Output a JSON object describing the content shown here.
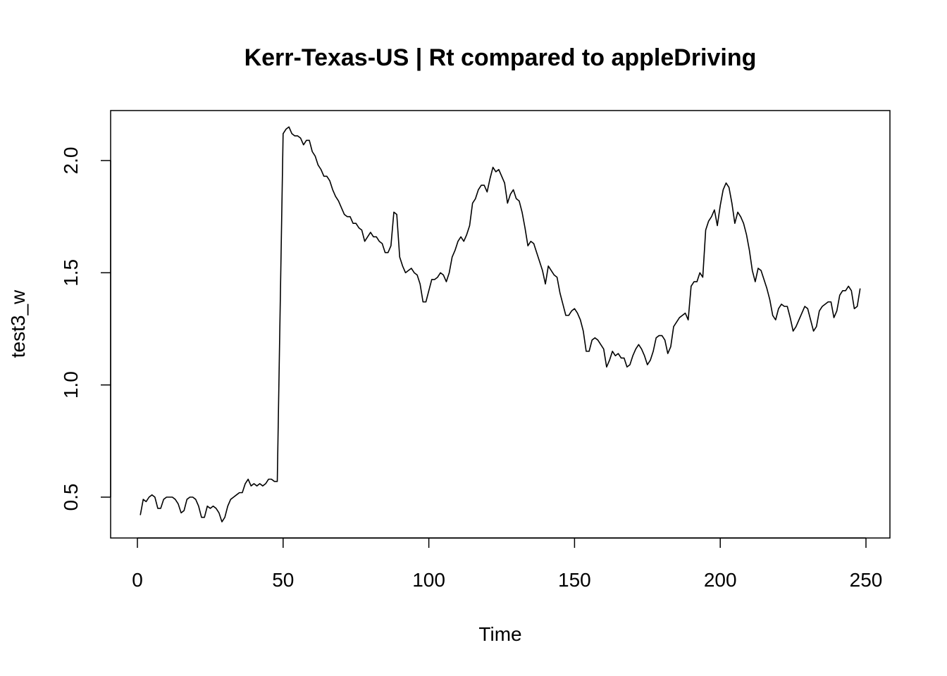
{
  "chart_data": {
    "type": "line",
    "title": "Kerr-Texas-US | Rt compared to appleDriving",
    "xlabel": "Time",
    "ylabel": "test3_w",
    "xlim": [
      1,
      248
    ],
    "ylim": [
      0.39,
      2.15
    ],
    "xticks": [
      0,
      50,
      100,
      150,
      200,
      250
    ],
    "xtick_labels": [
      "0",
      "50",
      "100",
      "150",
      "200",
      "250"
    ],
    "yticks": [
      0.5,
      1.0,
      1.5,
      2.0
    ],
    "ytick_labels": [
      "0.5",
      "1.0",
      "1.5",
      "2.0"
    ],
    "grid": false,
    "series": [
      {
        "points": [
          [
            1,
            0.42
          ],
          [
            2,
            0.49
          ],
          [
            3,
            0.48
          ],
          [
            4,
            0.5
          ],
          [
            5,
            0.51
          ],
          [
            6,
            0.5
          ],
          [
            7,
            0.45
          ],
          [
            8,
            0.45
          ],
          [
            9,
            0.49
          ],
          [
            10,
            0.5
          ],
          [
            11,
            0.5
          ],
          [
            12,
            0.5
          ],
          [
            13,
            0.49
          ],
          [
            14,
            0.47
          ],
          [
            15,
            0.43
          ],
          [
            16,
            0.44
          ],
          [
            17,
            0.49
          ],
          [
            18,
            0.5
          ],
          [
            19,
            0.5
          ],
          [
            20,
            0.49
          ],
          [
            21,
            0.46
          ],
          [
            22,
            0.41
          ],
          [
            23,
            0.41
          ],
          [
            24,
            0.46
          ],
          [
            25,
            0.45
          ],
          [
            26,
            0.46
          ],
          [
            27,
            0.45
          ],
          [
            28,
            0.43
          ],
          [
            29,
            0.39
          ],
          [
            30,
            0.41
          ],
          [
            31,
            0.46
          ],
          [
            32,
            0.49
          ],
          [
            33,
            0.5
          ],
          [
            34,
            0.51
          ],
          [
            35,
            0.52
          ],
          [
            36,
            0.52
          ],
          [
            37,
            0.56
          ],
          [
            38,
            0.58
          ],
          [
            39,
            0.55
          ],
          [
            40,
            0.56
          ],
          [
            41,
            0.55
          ],
          [
            42,
            0.56
          ],
          [
            43,
            0.55
          ],
          [
            44,
            0.56
          ],
          [
            45,
            0.58
          ],
          [
            46,
            0.58
          ],
          [
            47,
            0.57
          ],
          [
            48,
            0.57
          ],
          [
            49,
            1.35
          ],
          [
            50,
            2.12
          ],
          [
            51,
            2.14
          ],
          [
            52,
            2.15
          ],
          [
            53,
            2.12
          ],
          [
            54,
            2.11
          ],
          [
            55,
            2.11
          ],
          [
            56,
            2.1
          ],
          [
            57,
            2.07
          ],
          [
            58,
            2.09
          ],
          [
            59,
            2.09
          ],
          [
            60,
            2.04
          ],
          [
            61,
            2.02
          ],
          [
            62,
            1.98
          ],
          [
            63,
            1.96
          ],
          [
            64,
            1.93
          ],
          [
            65,
            1.93
          ],
          [
            66,
            1.91
          ],
          [
            67,
            1.87
          ],
          [
            68,
            1.84
          ],
          [
            69,
            1.82
          ],
          [
            70,
            1.79
          ],
          [
            71,
            1.76
          ],
          [
            72,
            1.75
          ],
          [
            73,
            1.75
          ],
          [
            74,
            1.72
          ],
          [
            75,
            1.72
          ],
          [
            76,
            1.7
          ],
          [
            77,
            1.69
          ],
          [
            78,
            1.64
          ],
          [
            79,
            1.66
          ],
          [
            80,
            1.68
          ],
          [
            81,
            1.66
          ],
          [
            82,
            1.66
          ],
          [
            83,
            1.64
          ],
          [
            84,
            1.63
          ],
          [
            85,
            1.59
          ],
          [
            86,
            1.59
          ],
          [
            87,
            1.62
          ],
          [
            88,
            1.77
          ],
          [
            89,
            1.76
          ],
          [
            90,
            1.57
          ],
          [
            91,
            1.53
          ],
          [
            92,
            1.5
          ],
          [
            93,
            1.51
          ],
          [
            94,
            1.52
          ],
          [
            95,
            1.5
          ],
          [
            96,
            1.49
          ],
          [
            97,
            1.45
          ],
          [
            98,
            1.37
          ],
          [
            99,
            1.37
          ],
          [
            100,
            1.42
          ],
          [
            101,
            1.47
          ],
          [
            102,
            1.47
          ],
          [
            103,
            1.48
          ],
          [
            104,
            1.5
          ],
          [
            105,
            1.49
          ],
          [
            106,
            1.46
          ],
          [
            107,
            1.5
          ],
          [
            108,
            1.57
          ],
          [
            109,
            1.6
          ],
          [
            110,
            1.64
          ],
          [
            111,
            1.66
          ],
          [
            112,
            1.64
          ],
          [
            113,
            1.67
          ],
          [
            114,
            1.71
          ],
          [
            115,
            1.81
          ],
          [
            116,
            1.83
          ],
          [
            117,
            1.87
          ],
          [
            118,
            1.89
          ],
          [
            119,
            1.89
          ],
          [
            120,
            1.86
          ],
          [
            121,
            1.92
          ],
          [
            122,
            1.97
          ],
          [
            123,
            1.95
          ],
          [
            124,
            1.96
          ],
          [
            125,
            1.93
          ],
          [
            126,
            1.9
          ],
          [
            127,
            1.81
          ],
          [
            128,
            1.85
          ],
          [
            129,
            1.87
          ],
          [
            130,
            1.83
          ],
          [
            131,
            1.82
          ],
          [
            132,
            1.77
          ],
          [
            133,
            1.7
          ],
          [
            134,
            1.62
          ],
          [
            135,
            1.64
          ],
          [
            136,
            1.63
          ],
          [
            137,
            1.59
          ],
          [
            138,
            1.55
          ],
          [
            139,
            1.51
          ],
          [
            140,
            1.45
          ],
          [
            141,
            1.53
          ],
          [
            142,
            1.51
          ],
          [
            143,
            1.49
          ],
          [
            144,
            1.48
          ],
          [
            145,
            1.41
          ],
          [
            146,
            1.36
          ],
          [
            147,
            1.31
          ],
          [
            148,
            1.31
          ],
          [
            149,
            1.33
          ],
          [
            150,
            1.34
          ],
          [
            151,
            1.32
          ],
          [
            152,
            1.29
          ],
          [
            153,
            1.24
          ],
          [
            154,
            1.15
          ],
          [
            155,
            1.15
          ],
          [
            156,
            1.2
          ],
          [
            157,
            1.21
          ],
          [
            158,
            1.2
          ],
          [
            159,
            1.18
          ],
          [
            160,
            1.16
          ],
          [
            161,
            1.08
          ],
          [
            162,
            1.11
          ],
          [
            163,
            1.15
          ],
          [
            164,
            1.13
          ],
          [
            165,
            1.14
          ],
          [
            166,
            1.12
          ],
          [
            167,
            1.12
          ],
          [
            168,
            1.08
          ],
          [
            169,
            1.09
          ],
          [
            170,
            1.13
          ],
          [
            171,
            1.16
          ],
          [
            172,
            1.18
          ],
          [
            173,
            1.16
          ],
          [
            174,
            1.13
          ],
          [
            175,
            1.09
          ],
          [
            176,
            1.11
          ],
          [
            177,
            1.15
          ],
          [
            178,
            1.21
          ],
          [
            179,
            1.22
          ],
          [
            180,
            1.22
          ],
          [
            181,
            1.2
          ],
          [
            182,
            1.14
          ],
          [
            183,
            1.17
          ],
          [
            184,
            1.26
          ],
          [
            185,
            1.28
          ],
          [
            186,
            1.3
          ],
          [
            187,
            1.31
          ],
          [
            188,
            1.32
          ],
          [
            189,
            1.29
          ],
          [
            190,
            1.44
          ],
          [
            191,
            1.46
          ],
          [
            192,
            1.46
          ],
          [
            193,
            1.5
          ],
          [
            194,
            1.48
          ],
          [
            195,
            1.69
          ],
          [
            196,
            1.73
          ],
          [
            197,
            1.75
          ],
          [
            198,
            1.78
          ],
          [
            199,
            1.71
          ],
          [
            200,
            1.8
          ],
          [
            201,
            1.87
          ],
          [
            202,
            1.9
          ],
          [
            203,
            1.88
          ],
          [
            204,
            1.81
          ],
          [
            205,
            1.72
          ],
          [
            206,
            1.77
          ],
          [
            207,
            1.75
          ],
          [
            208,
            1.72
          ],
          [
            209,
            1.67
          ],
          [
            210,
            1.6
          ],
          [
            211,
            1.51
          ],
          [
            212,
            1.46
          ],
          [
            213,
            1.52
          ],
          [
            214,
            1.51
          ],
          [
            215,
            1.47
          ],
          [
            216,
            1.43
          ],
          [
            217,
            1.38
          ],
          [
            218,
            1.31
          ],
          [
            219,
            1.29
          ],
          [
            220,
            1.34
          ],
          [
            221,
            1.36
          ],
          [
            222,
            1.35
          ],
          [
            223,
            1.35
          ],
          [
            224,
            1.3
          ],
          [
            225,
            1.24
          ],
          [
            226,
            1.26
          ],
          [
            227,
            1.29
          ],
          [
            228,
            1.32
          ],
          [
            229,
            1.35
          ],
          [
            230,
            1.34
          ],
          [
            231,
            1.29
          ],
          [
            232,
            1.24
          ],
          [
            233,
            1.26
          ],
          [
            234,
            1.33
          ],
          [
            235,
            1.35
          ],
          [
            236,
            1.36
          ],
          [
            237,
            1.37
          ],
          [
            238,
            1.37
          ],
          [
            239,
            1.3
          ],
          [
            240,
            1.33
          ],
          [
            241,
            1.4
          ],
          [
            242,
            1.42
          ],
          [
            243,
            1.42
          ],
          [
            244,
            1.44
          ],
          [
            245,
            1.42
          ],
          [
            246,
            1.34
          ],
          [
            247,
            1.35
          ],
          [
            248,
            1.43
          ]
        ]
      }
    ]
  }
}
